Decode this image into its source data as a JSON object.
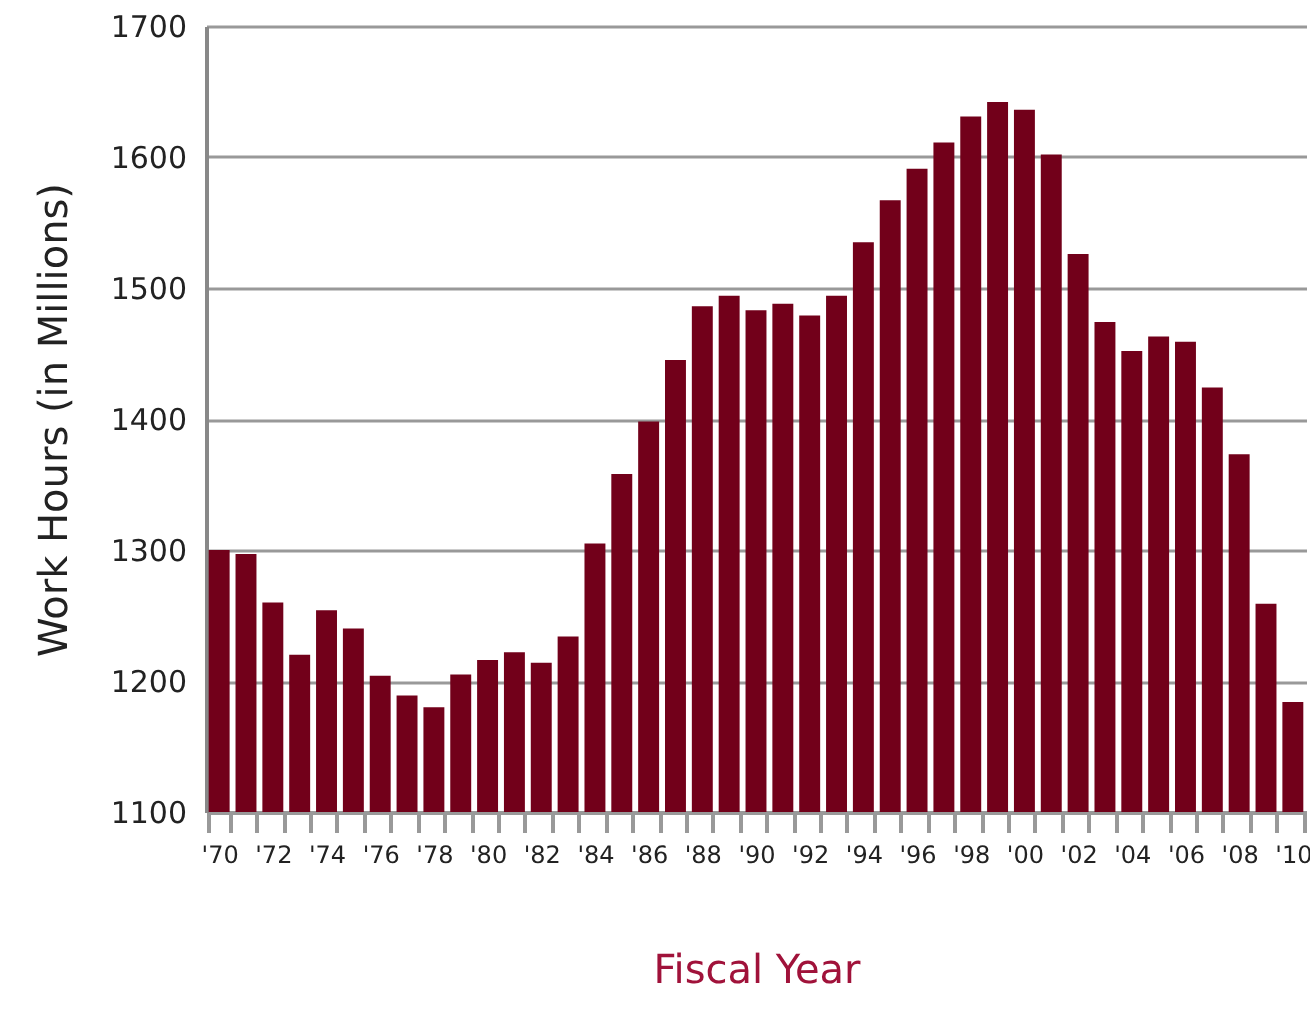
{
  "chart_data": {
    "type": "bar",
    "xlabel": "Fiscal Year",
    "ylabel": "Work Hours (in Millions)",
    "categories": [
      "'70",
      null,
      "'72",
      null,
      "'74",
      null,
      "'76",
      null,
      "'78",
      null,
      "'80",
      null,
      "'82",
      null,
      "'84",
      null,
      "'86",
      null,
      "'88",
      null,
      "'90",
      null,
      "'92",
      null,
      "'94",
      null,
      "'96",
      null,
      "'98",
      null,
      "'00",
      null,
      "'02",
      null,
      "'04",
      null,
      "'06",
      null,
      "'08",
      null,
      "'10"
    ],
    "values": [
      1300,
      1297,
      1260,
      1220,
      1254,
      1240,
      1204,
      1189,
      1180,
      1205,
      1216,
      1222,
      1214,
      1234,
      1305,
      1358,
      1398,
      1445,
      1486,
      1494,
      1483,
      1488,
      1479,
      1494,
      1535,
      1567,
      1591,
      1611,
      1631,
      1642,
      1636,
      1602,
      1526,
      1474,
      1452,
      1463,
      1459,
      1424,
      1373,
      1259,
      1184
    ],
    "color": "#72001a",
    "ylim": [
      1100,
      1700
    ],
    "yticks": [
      1100,
      1200,
      1300,
      1400,
      1500,
      1600,
      1700
    ],
    "grid": "y"
  }
}
